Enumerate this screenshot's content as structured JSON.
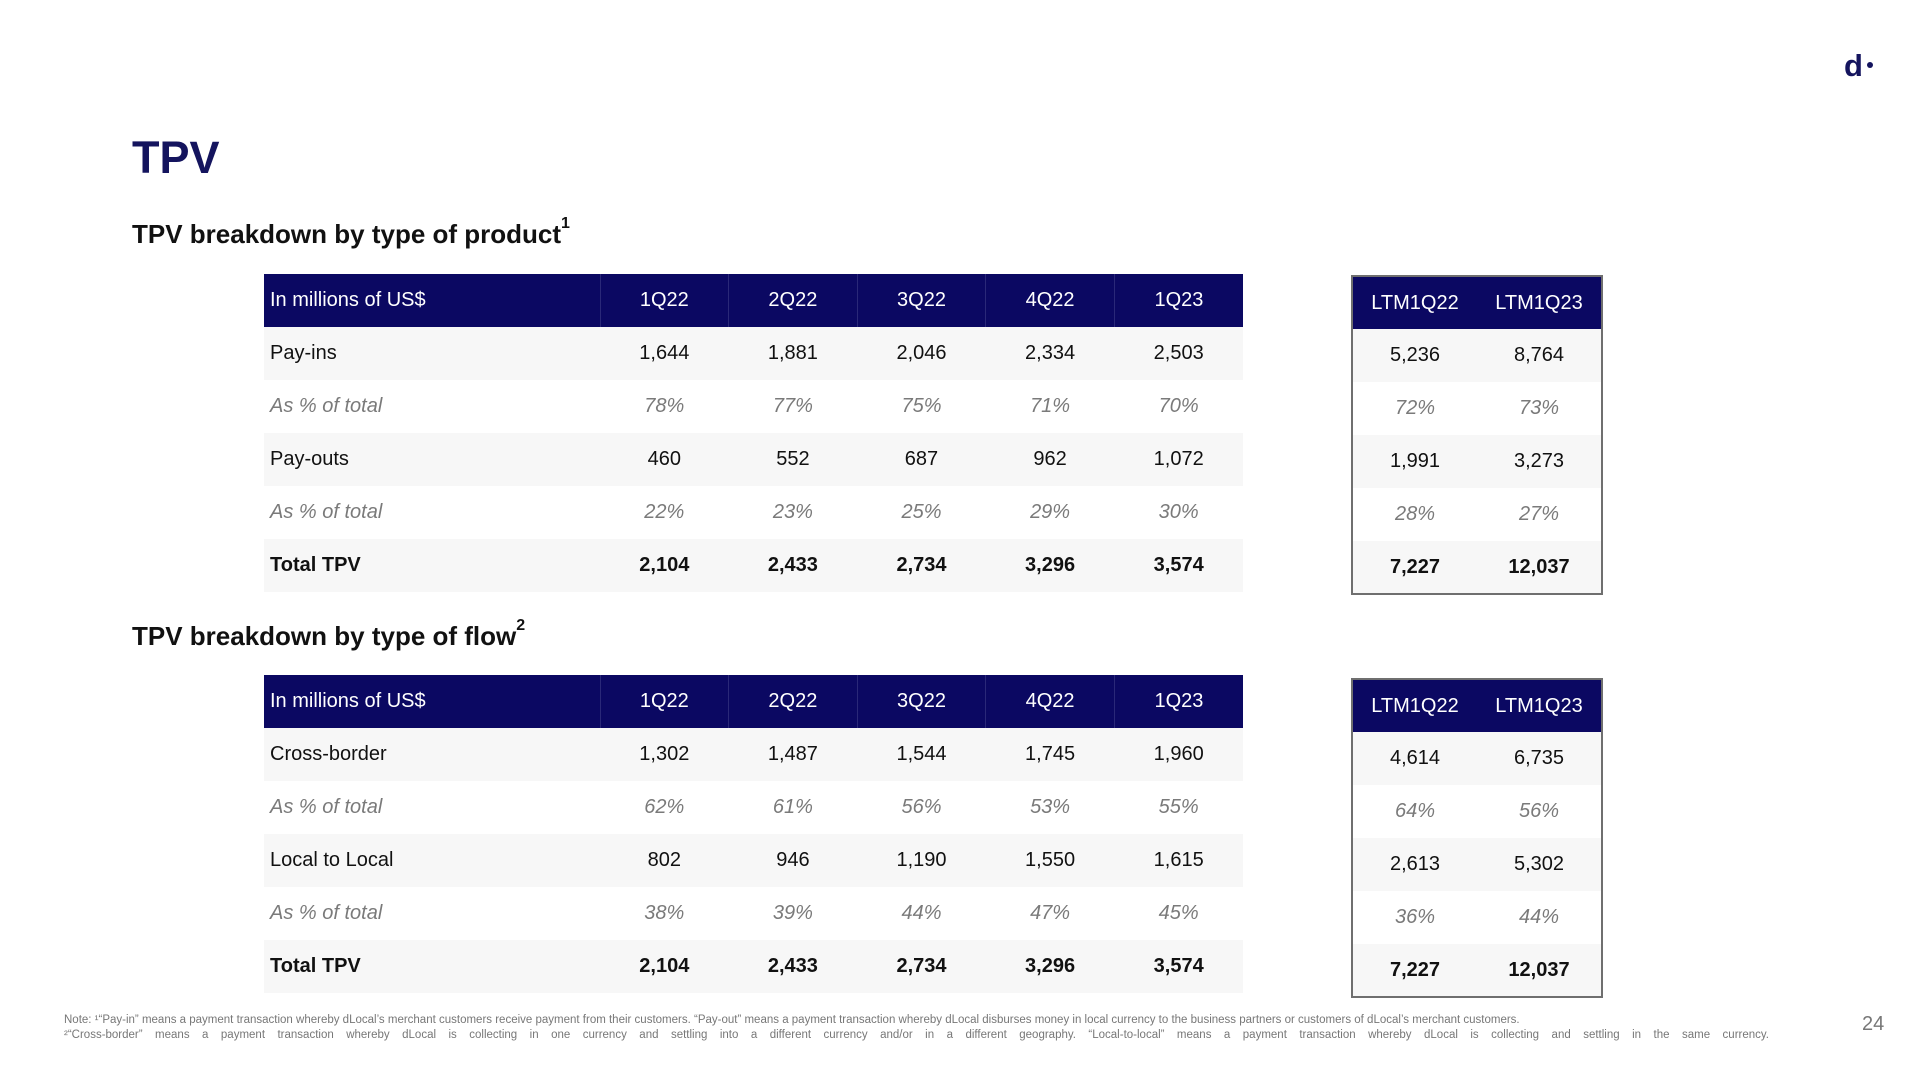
{
  "logo_text": "d",
  "page_title": "TPV",
  "page_number": "24",
  "product": {
    "title": "TPV breakdown by type of product",
    "sup": "1",
    "headers": [
      "In millions of US$",
      "1Q22",
      "2Q22",
      "3Q22",
      "4Q22",
      "1Q23"
    ],
    "rows": [
      {
        "cells": [
          "Pay-ins",
          "1,644",
          "1,881",
          "2,046",
          "2,334",
          "2,503"
        ]
      },
      {
        "cells": [
          "As % of total",
          "78%",
          "77%",
          "75%",
          "71%",
          "70%"
        ]
      },
      {
        "cells": [
          "Pay-outs",
          "460",
          "552",
          "687",
          "962",
          "1,072"
        ]
      },
      {
        "cells": [
          "As % of total",
          "22%",
          "23%",
          "25%",
          "29%",
          "30%"
        ]
      },
      {
        "cells": [
          "Total TPV",
          "2,104",
          "2,433",
          "2,734",
          "3,296",
          "3,574"
        ]
      }
    ],
    "ltm_headers": [
      "LTM1Q22",
      "LTM1Q23"
    ],
    "ltm_rows": [
      {
        "cells": [
          "5,236",
          "8,764"
        ]
      },
      {
        "cells": [
          "72%",
          "73%"
        ]
      },
      {
        "cells": [
          "1,991",
          "3,273"
        ]
      },
      {
        "cells": [
          "28%",
          "27%"
        ]
      },
      {
        "cells": [
          "7,227",
          "12,037"
        ]
      }
    ]
  },
  "flow": {
    "title": "TPV breakdown by type of flow",
    "sup": "2",
    "headers": [
      "In millions of US$",
      "1Q22",
      "2Q22",
      "3Q22",
      "4Q22",
      "1Q23"
    ],
    "rows": [
      {
        "cells": [
          "Cross-border",
          "1,302",
          "1,487",
          "1,544",
          "1,745",
          "1,960"
        ]
      },
      {
        "cells": [
          "As % of total",
          "62%",
          "61%",
          "56%",
          "53%",
          "55%"
        ]
      },
      {
        "cells": [
          "Local to Local",
          "802",
          "946",
          "1,190",
          "1,550",
          "1,615"
        ]
      },
      {
        "cells": [
          "As % of total",
          "38%",
          "39%",
          "44%",
          "47%",
          "45%"
        ]
      },
      {
        "cells": [
          "Total TPV",
          "2,104",
          "2,433",
          "2,734",
          "3,296",
          "3,574"
        ]
      }
    ],
    "ltm_headers": [
      "LTM1Q22",
      "LTM1Q23"
    ],
    "ltm_rows": [
      {
        "cells": [
          "4,614",
          "6,735"
        ]
      },
      {
        "cells": [
          "64%",
          "56%"
        ]
      },
      {
        "cells": [
          "2,613",
          "5,302"
        ]
      },
      {
        "cells": [
          "36%",
          "44%"
        ]
      },
      {
        "cells": [
          "7,227",
          "12,037"
        ]
      }
    ]
  },
  "note": {
    "line1": "Note: ¹“Pay-in” means a payment transaction whereby dLocal’s merchant customers receive payment from their customers. “Pay-out” means a payment transaction whereby dLocal disburses money in local currency to the business partners or customers of dLocal’s merchant customers.",
    "line2": "²“Cross-border” means a payment transaction whereby dLocal is collecting in one currency and settling into a different currency and/or in a different geography. “Local-to-local” means a payment transaction whereby dLocal is collecting and settling in the same currency."
  }
}
